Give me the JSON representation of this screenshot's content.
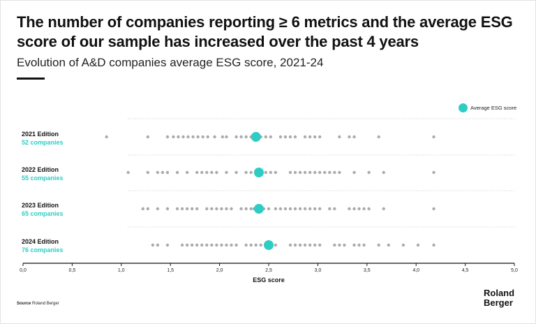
{
  "header": {
    "title": "The number of companies reporting ≥ 6 metrics and the average ESG score of our sample has increased over the past 4 years",
    "subtitle": "Evolution of A&D companies average ESG score, 2021-24"
  },
  "legend": {
    "label": "Average ESG score"
  },
  "footer": {
    "source_label": "Source",
    "source_text": "Roland Berger",
    "brand_line1": "Roland",
    "brand_line2": "Berger"
  },
  "colors": {
    "accent": "#2ecdc4",
    "dot": "#ababab",
    "divider": "#d6d6d6"
  },
  "chart_data": {
    "type": "scatter",
    "xlabel": "ESG score",
    "xlim": [
      0,
      5
    ],
    "xticks": [
      "0,0",
      "0,5",
      "1,0",
      "1,5",
      "2,0",
      "2,5",
      "3,0",
      "3,5",
      "4,0",
      "4,5",
      "5,0"
    ],
    "series": [
      {
        "edition": "2021 Edition",
        "companies": "52 companies",
        "average": 2.37,
        "values": [
          0.85,
          1.27,
          1.47,
          1.53,
          1.58,
          1.63,
          1.68,
          1.73,
          1.78,
          1.83,
          1.88,
          1.95,
          2.03,
          2.07,
          2.17,
          2.22,
          2.27,
          2.32,
          2.42,
          2.47,
          2.52,
          2.62,
          2.67,
          2.72,
          2.77,
          2.87,
          2.92,
          2.97,
          3.02,
          3.22,
          3.32,
          3.37,
          3.62,
          4.18
        ]
      },
      {
        "edition": "2022 Edition",
        "companies": "55 companies",
        "average": 2.4,
        "values": [
          1.07,
          1.27,
          1.37,
          1.42,
          1.47,
          1.57,
          1.67,
          1.77,
          1.82,
          1.87,
          1.92,
          1.97,
          2.07,
          2.17,
          2.27,
          2.32,
          2.47,
          2.52,
          2.57,
          2.72,
          2.77,
          2.82,
          2.87,
          2.92,
          2.97,
          3.02,
          3.07,
          3.12,
          3.17,
          3.22,
          3.37,
          3.52,
          3.67,
          4.18
        ]
      },
      {
        "edition": "2023 Edition",
        "companies": "65 companies",
        "average": 2.4,
        "values": [
          1.22,
          1.27,
          1.37,
          1.47,
          1.57,
          1.62,
          1.67,
          1.72,
          1.77,
          1.87,
          1.92,
          1.97,
          2.02,
          2.07,
          2.12,
          2.22,
          2.27,
          2.32,
          2.35,
          2.45,
          2.5,
          2.57,
          2.62,
          2.67,
          2.72,
          2.77,
          2.82,
          2.87,
          2.92,
          2.97,
          3.02,
          3.12,
          3.17,
          3.32,
          3.37,
          3.42,
          3.47,
          3.52,
          3.67,
          4.18
        ]
      },
      {
        "edition": "2024 Edition",
        "companies": "76 companies",
        "average": 2.5,
        "values": [
          1.32,
          1.37,
          1.47,
          1.62,
          1.67,
          1.72,
          1.77,
          1.82,
          1.87,
          1.92,
          1.97,
          2.02,
          2.07,
          2.12,
          2.17,
          2.27,
          2.32,
          2.37,
          2.42,
          2.57,
          2.72,
          2.77,
          2.82,
          2.87,
          2.92,
          2.97,
          3.02,
          3.17,
          3.22,
          3.27,
          3.37,
          3.42,
          3.47,
          3.62,
          3.72,
          3.87,
          4.02,
          4.18
        ]
      }
    ]
  }
}
